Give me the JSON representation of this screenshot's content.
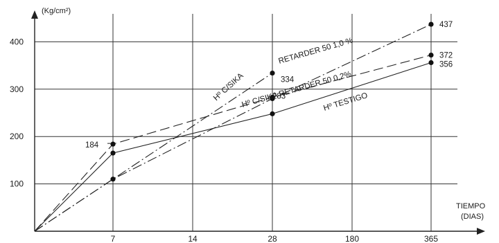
{
  "chart_data": {
    "type": "line",
    "ylabel": "(Kg/cm²)",
    "xlabel_line1": "TIEMPO",
    "xlabel_line2": "(DIAS)",
    "categories": [
      "7",
      "14",
      "28",
      "180",
      "365"
    ],
    "y_ticks": [
      "100",
      "200",
      "300",
      "400"
    ],
    "ylim": [
      0,
      460
    ],
    "grid": true,
    "series": [
      {
        "name": "Hº C/SIKA RETARDER 50 1,0 %",
        "line_style": "dash-dot",
        "x": [
          "0",
          "7",
          "28",
          "365"
        ],
        "values": [
          0,
          110,
          280,
          437
        ]
      },
      {
        "name": "Hº C/SIKA RETARDER 50 0,2%",
        "line_style": "dashed",
        "x": [
          "0",
          "7",
          "28",
          "365"
        ],
        "values": [
          0,
          184,
          283,
          372
        ]
      },
      {
        "name": "Hº TESTIGO",
        "line_style": "solid",
        "x": [
          "0",
          "7",
          "28",
          "365"
        ],
        "values": [
          0,
          165,
          248,
          356
        ]
      },
      {
        "name": "Hº C/SIKA",
        "line_style": "dash-dot",
        "x": [
          "0",
          "28"
        ],
        "values": [
          0,
          334
        ]
      }
    ],
    "data_labels": [
      {
        "text": "184",
        "x": "7",
        "y": 184
      },
      {
        "text": "334",
        "x": "28",
        "y": 334
      },
      {
        "text": "283",
        "x": "28",
        "y": 283
      },
      {
        "text": "437",
        "x": "365",
        "y": 437
      },
      {
        "text": "372",
        "x": "365",
        "y": 372
      },
      {
        "text": "356",
        "x": "365",
        "y": 356
      }
    ],
    "annotations": [
      "Hº C/SIKA",
      "RETARDER 50 1,0 %",
      "Hº C/SIKA RETARDER 50 0,2%",
      "Hº TESTIGO"
    ]
  }
}
